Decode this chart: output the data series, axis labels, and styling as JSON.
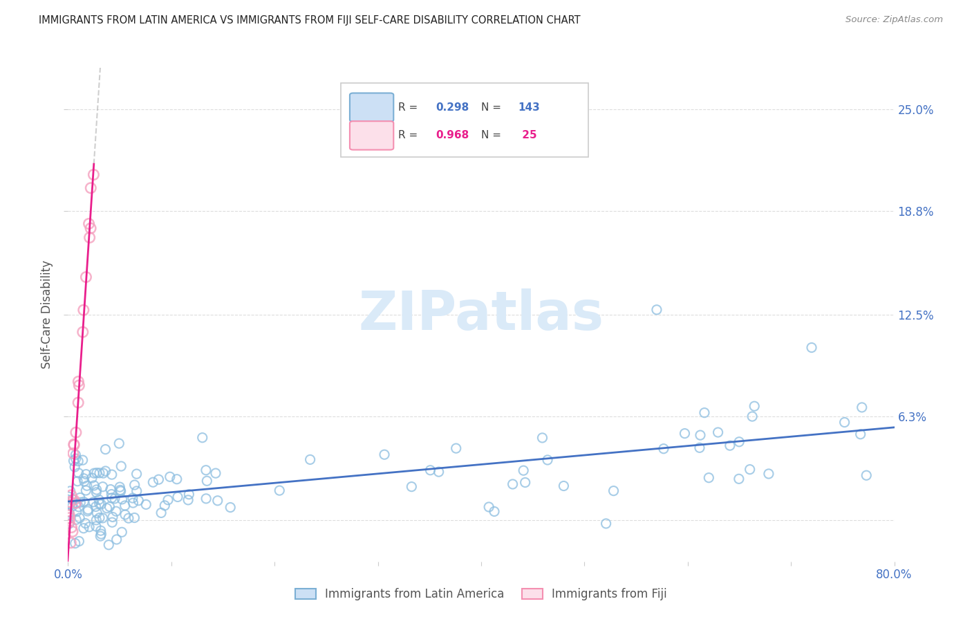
{
  "title": "IMMIGRANTS FROM LATIN AMERICA VS IMMIGRANTS FROM FIJI SELF-CARE DISABILITY CORRELATION CHART",
  "source": "Source: ZipAtlas.com",
  "ylabel": "Self-Care Disability",
  "ytick_values": [
    0.0,
    6.3,
    12.5,
    18.8,
    25.0
  ],
  "ytick_labels": [
    "",
    "6.3%",
    "12.5%",
    "18.8%",
    "25.0%"
  ],
  "xtick_values": [
    0,
    10,
    20,
    30,
    40,
    50,
    60,
    70,
    80
  ],
  "xtick_labels": [
    "0.0%",
    "",
    "",
    "",
    "",
    "",
    "",
    "",
    "80.0%"
  ],
  "xlim": [
    0.0,
    80.0
  ],
  "ylim_low": -2.5,
  "ylim_high": 27.5,
  "blue_scatter_color": "#8bbde0",
  "pink_scatter_color": "#f4a0be",
  "blue_line_color": "#4472c4",
  "pink_line_color": "#e91e8c",
  "watermark_color": "#daeaf8",
  "title_color": "#222222",
  "source_color": "#888888",
  "axis_label_color": "#4472c4",
  "ylabel_color": "#555555",
  "grid_color": "#dddddd",
  "background": "#ffffff",
  "legend_R_blue": "0.298",
  "legend_N_blue": "143",
  "legend_R_pink": "0.968",
  "legend_N_pink": " 25",
  "legend_label_blue": "Immigrants from Latin America",
  "legend_label_pink": "Immigrants from Fiji",
  "blue_legend_face": "#cce0f5",
  "blue_legend_edge": "#7bafd4",
  "pink_legend_face": "#fce0ea",
  "pink_legend_edge": "#f48fb1"
}
